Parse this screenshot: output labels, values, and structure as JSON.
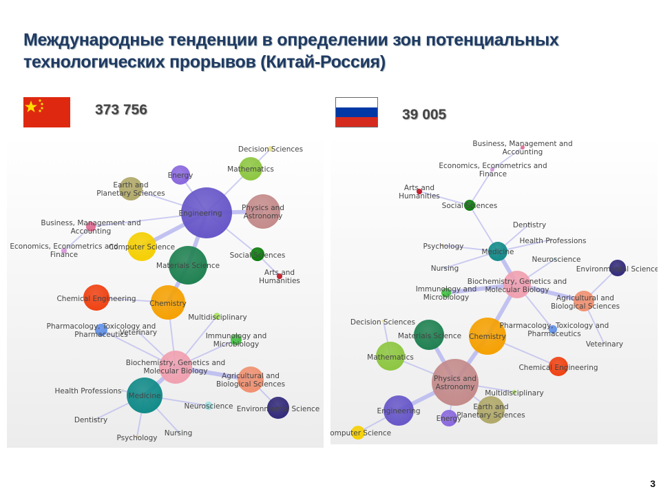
{
  "title_line1": "Международные тенденции в определении зон потенциальных",
  "title_line2": "технологических прорывов (Китай-Россия)",
  "china": {
    "count": "373 756",
    "flag_red": "#de2910",
    "flag_star": "#ffde00"
  },
  "russia": {
    "count": "39 005",
    "flag_colors": [
      "#ffffff",
      "#0039a6",
      "#d52b1e"
    ]
  },
  "page_number": "3",
  "edge_color": "#b8b8f0",
  "nodes": {
    "eng": {
      "label": "Engineering",
      "color": "#6656c8"
    },
    "math": {
      "label": "Mathematics",
      "color": "#8cc63f"
    },
    "dec": {
      "label": "Decision Sciences",
      "color": "#e8e090"
    },
    "energy": {
      "label": "Energy",
      "color": "#8866dd"
    },
    "earth": {
      "label": "Earth and|Planetary Sciences",
      "color": "#b0a868"
    },
    "phys": {
      "label": "Physics and|Astronomy",
      "color": "#c48a8a"
    },
    "bus": {
      "label": "Business, Management and|Accounting",
      "color": "#e06a90"
    },
    "econ": {
      "label": "Economics, Econometrics and|Finance",
      "color": "#d898d8"
    },
    "cs": {
      "label": "Computer Science",
      "color": "#f5cf00"
    },
    "mat": {
      "label": "Materials Science",
      "color": "#1e8050"
    },
    "soc": {
      "label": "Social Sciences",
      "color": "#0a7a0a"
    },
    "arts": {
      "label": "Arts and|Humanities",
      "color": "#c01020"
    },
    "cheng": {
      "label": "Chemical Engineering",
      "color": "#f04010"
    },
    "chem": {
      "label": "Chemistry",
      "color": "#f5a000"
    },
    "multi": {
      "label": "Multidisciplinary",
      "color": "#a8e060"
    },
    "pharm": {
      "label": "Pharmacology, Toxicology and|Pharmaceutics",
      "color": "#6090e8"
    },
    "vet": {
      "label": "Veterinary",
      "color": "#cccccc"
    },
    "immu": {
      "label": "Immunology and|Microbiology",
      "color": "#40c040"
    },
    "bio": {
      "label": "Biochemistry, Genetics and|Molecular Biology",
      "color": "#f0a0b0"
    },
    "agri": {
      "label": "Agricultural and|Biological Sciences",
      "color": "#f09070"
    },
    "env": {
      "label": "Environmental Science",
      "color": "#302878"
    },
    "med": {
      "label": "Medicine",
      "color": "#108a88"
    },
    "health": {
      "label": "Health Professions",
      "color": "#d0d0d0"
    },
    "neuro": {
      "label": "Neuroscience",
      "color": "#a0e0e0"
    },
    "dent": {
      "label": "Dentistry",
      "color": "#c8c8c8"
    },
    "psy": {
      "label": "Psychology",
      "color": "#e0c890"
    },
    "nurs": {
      "label": "Nursing",
      "color": "#b0c8e0"
    }
  },
  "china_graph_edges": [
    [
      "eng",
      "math"
    ],
    [
      "math",
      "dec"
    ],
    [
      "eng",
      "energy"
    ],
    [
      "eng",
      "earth"
    ],
    [
      "eng",
      "phys"
    ],
    [
      "eng",
      "bus"
    ],
    [
      "bus",
      "econ"
    ],
    [
      "eng",
      "cs"
    ],
    [
      "eng",
      "mat"
    ],
    [
      "eng",
      "soc"
    ],
    [
      "soc",
      "arts"
    ],
    [
      "mat",
      "chem"
    ],
    [
      "chem",
      "cheng"
    ],
    [
      "chem",
      "bio"
    ],
    [
      "bio",
      "multi"
    ],
    [
      "bio",
      "pharm"
    ],
    [
      "bio",
      "vet"
    ],
    [
      "bio",
      "immu"
    ],
    [
      "bio",
      "agri"
    ],
    [
      "agri",
      "env"
    ],
    [
      "bio",
      "med"
    ],
    [
      "med",
      "health"
    ],
    [
      "med",
      "neuro"
    ],
    [
      "med",
      "dent"
    ],
    [
      "med",
      "psy"
    ],
    [
      "med",
      "nurs"
    ]
  ],
  "china_thick_edges": [
    [
      "eng",
      "phys"
    ],
    [
      "eng",
      "cs"
    ],
    [
      "eng",
      "mat"
    ],
    [
      "mat",
      "chem"
    ],
    [
      "bio",
      "agri"
    ],
    [
      "bio",
      "med"
    ]
  ],
  "russia_graph_edges": [
    [
      "bus",
      "econ"
    ],
    [
      "econ",
      "soc"
    ],
    [
      "arts",
      "soc"
    ],
    [
      "soc",
      "med"
    ],
    [
      "med",
      "dent"
    ],
    [
      "med",
      "health"
    ],
    [
      "med",
      "psy"
    ],
    [
      "med",
      "nurs"
    ],
    [
      "med",
      "bio"
    ],
    [
      "bio",
      "neuro"
    ],
    [
      "bio",
      "immu"
    ],
    [
      "bio",
      "agri"
    ],
    [
      "agri",
      "env"
    ],
    [
      "agri",
      "vet"
    ],
    [
      "bio",
      "chem"
    ],
    [
      "bio",
      "pharm"
    ],
    [
      "chem",
      "phys"
    ],
    [
      "chem",
      "cheng"
    ],
    [
      "mat",
      "phys"
    ],
    [
      "math",
      "phys"
    ],
    [
      "math",
      "dec"
    ],
    [
      "phys",
      "multi"
    ],
    [
      "phys",
      "earth"
    ],
    [
      "phys",
      "eng"
    ],
    [
      "phys",
      "energy"
    ],
    [
      "eng",
      "cs"
    ]
  ],
  "russia_thick_edges": [
    [
      "med",
      "bio"
    ],
    [
      "bio",
      "immu"
    ],
    [
      "bio",
      "agri"
    ],
    [
      "bio",
      "chem"
    ],
    [
      "chem",
      "phys"
    ],
    [
      "mat",
      "phys"
    ],
    [
      "phys",
      "eng"
    ]
  ]
}
